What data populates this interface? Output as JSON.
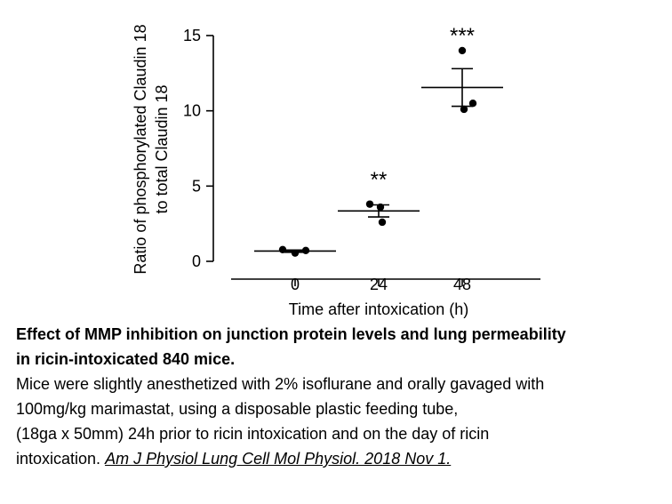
{
  "chart_data": {
    "type": "scatter",
    "xlabel": "Time after intoxication (h)",
    "ylabel": [
      "Ratio of phosphorylated Claudin 18",
      "to total Claudin 18"
    ],
    "ylim": [
      0,
      15
    ],
    "yticks": [
      0,
      5,
      10,
      15
    ],
    "categories": [
      "0",
      "24",
      "48"
    ],
    "points": [
      [
        0.78,
        0.55,
        0.72
      ],
      [
        3.8,
        3.6,
        2.6
      ],
      [
        14.0,
        10.5,
        10.1
      ]
    ],
    "means": [
      0.68,
      3.35,
      11.55
    ],
    "sem_upper": [
      0.75,
      3.75,
      12.8
    ],
    "sem_lower": [
      0.6,
      2.95,
      10.3
    ],
    "significance": [
      "",
      "**",
      "***"
    ]
  },
  "caption": {
    "title_line1": "Effect of MMP inhibition on junction protein levels and lung permeability",
    "title_line2": "in ricin-intoxicated 840 mice.",
    "body_line1": "Mice were slightly anesthetized with 2% isoflurane and orally gavaged with",
    "body_line2": "100mg/kg marimastat, using a disposable plastic feeding tube,",
    "body_line3": "(18ga x 50mm) 24h prior to ricin intoxication and on the day of ricin",
    "body_line4_prefix": "intoxication. ",
    "citation": "Am J Physiol Lung Cell Mol Physiol. 2018 Nov 1."
  }
}
